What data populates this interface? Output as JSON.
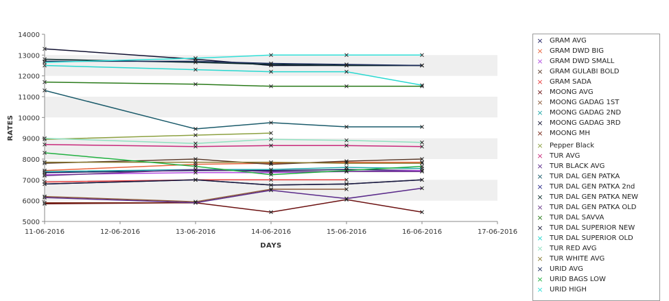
{
  "chart_data": {
    "type": "line",
    "xlabel": "DAYS",
    "ylabel": "RATES",
    "ylim": [
      5000,
      14000
    ],
    "yticks": [
      5000,
      6000,
      7000,
      8000,
      9000,
      10000,
      11000,
      12000,
      13000,
      14000
    ],
    "x_ticks": [
      "11-06-2016",
      "12-06-2016",
      "13-06-2016",
      "14-06-2016",
      "15-06-2016",
      "16-06-2016",
      "17-06-2016"
    ],
    "grid": "horizontal alternating bands",
    "legend_position": "right",
    "marker": "x",
    "series": [
      {
        "name": "GRAM AVG",
        "color": "#1a1a5e",
        "points": [
          [
            "11-06-2016",
            7350
          ],
          [
            "13-06-2016",
            7450
          ],
          [
            "14-06-2016",
            7450
          ],
          [
            "15-06-2016",
            7500
          ],
          [
            "16-06-2016",
            7450
          ]
        ]
      },
      {
        "name": "GRAM DWD BIG",
        "color": "#e8643c",
        "points": [
          [
            "11-06-2016",
            7450
          ],
          [
            "13-06-2016",
            7750
          ],
          [
            "14-06-2016",
            7800
          ],
          [
            "15-06-2016",
            7850
          ],
          [
            "16-06-2016",
            7850
          ]
        ]
      },
      {
        "name": "GRAM DWD SMALL",
        "color": "#b34de0",
        "points": [
          [
            "11-06-2016",
            7250
          ],
          [
            "13-06-2016",
            7350
          ],
          [
            "14-06-2016",
            7350
          ],
          [
            "15-06-2016",
            7400
          ],
          [
            "16-06-2016",
            7450
          ]
        ]
      },
      {
        "name": "GRAM GULABI BOLD",
        "color": "#5a3a2a",
        "points": [
          [
            "11-06-2016",
            7800
          ],
          [
            "13-06-2016",
            8000
          ],
          [
            "14-06-2016",
            7750
          ],
          [
            "15-06-2016",
            7900
          ],
          [
            "16-06-2016",
            8000
          ]
        ]
      },
      {
        "name": "GRAM SADA",
        "color": "#e83c3c",
        "points": [
          [
            "11-06-2016",
            6900
          ],
          [
            "13-06-2016",
            7000
          ],
          [
            "14-06-2016",
            7000
          ],
          [
            "15-06-2016",
            7000
          ]
        ]
      },
      {
        "name": "MOONG AVG",
        "color": "#6b1010",
        "points": [
          [
            "11-06-2016",
            5850
          ],
          [
            "13-06-2016",
            5900
          ],
          [
            "14-06-2016",
            5450
          ],
          [
            "15-06-2016",
            6050
          ],
          [
            "16-06-2016",
            5450
          ]
        ]
      },
      {
        "name": "MOONG GADAG 1ST",
        "color": "#8c5a3a",
        "points": [
          [
            "11-06-2016",
            6200
          ],
          [
            "13-06-2016",
            5950
          ],
          [
            "14-06-2016",
            6550
          ],
          [
            "15-06-2016",
            6550
          ]
        ]
      },
      {
        "name": "MOONG GADAG 2ND",
        "color": "#20a8a8",
        "points": [
          [
            "11-06-2016",
            7400
          ],
          [
            "13-06-2016",
            7500
          ],
          [
            "14-06-2016",
            7500
          ],
          [
            "15-06-2016",
            7600
          ],
          [
            "16-06-2016",
            7550
          ]
        ]
      },
      {
        "name": "MOONG GADAG 3RD",
        "color": "#101030",
        "points": [
          [
            "11-06-2016",
            13300
          ],
          [
            "13-06-2016",
            12800
          ],
          [
            "14-06-2016",
            12500
          ],
          [
            "15-06-2016",
            12500
          ],
          [
            "16-06-2016",
            12500
          ]
        ]
      },
      {
        "name": "MOONG MH",
        "color": "#7a2a1a",
        "points": [
          [
            "11-06-2016",
            5900
          ],
          [
            "13-06-2016",
            5900
          ]
        ]
      },
      {
        "name": "Pepper Black",
        "color": "#8ca040",
        "points": [
          [
            "11-06-2016",
            8950
          ],
          [
            "13-06-2016",
            9150
          ],
          [
            "14-06-2016",
            9250
          ]
        ]
      },
      {
        "name": "TUR AVG",
        "color": "#c8287a",
        "points": [
          [
            "11-06-2016",
            8700
          ],
          [
            "13-06-2016",
            8600
          ],
          [
            "14-06-2016",
            8650
          ],
          [
            "15-06-2016",
            8650
          ],
          [
            "16-06-2016",
            8600
          ]
        ]
      },
      {
        "name": "TUR BLACK AVG",
        "color": "#5a2a8a",
        "points": [
          [
            "11-06-2016",
            6150
          ],
          [
            "13-06-2016",
            5900
          ],
          [
            "14-06-2016",
            6500
          ],
          [
            "15-06-2016",
            6100
          ],
          [
            "16-06-2016",
            6600
          ]
        ]
      },
      {
        "name": "TUR DAL GEN PATKA",
        "color": "#1a5a6a",
        "points": [
          [
            "11-06-2016",
            11300
          ],
          [
            "13-06-2016",
            9450
          ],
          [
            "14-06-2016",
            9750
          ],
          [
            "15-06-2016",
            9550
          ],
          [
            "16-06-2016",
            9550
          ]
        ]
      },
      {
        "name": "TUR DAL GEN PATKA 2nd",
        "color": "#2a2a8a",
        "points": [
          [
            "11-06-2016",
            6800
          ],
          [
            "13-06-2016",
            7000
          ],
          [
            "14-06-2016",
            6750
          ],
          [
            "15-06-2016",
            6800
          ],
          [
            "16-06-2016",
            7000
          ]
        ]
      },
      {
        "name": "TUR DAL GEN PATKA NEW",
        "color": "#0a2a2a",
        "points": [
          [
            "11-06-2016",
            12800
          ],
          [
            "13-06-2016",
            12650
          ],
          [
            "14-06-2016",
            12550
          ],
          [
            "15-06-2016",
            12500
          ],
          [
            "16-06-2016",
            12500
          ]
        ]
      },
      {
        "name": "TUR DAL GEN PATKA OLD",
        "color": "#6a3a8a",
        "points": [
          [
            "11-06-2016",
            7200
          ],
          [
            "13-06-2016",
            7500
          ],
          [
            "14-06-2016",
            7400
          ],
          [
            "15-06-2016",
            7400
          ],
          [
            "16-06-2016",
            7400
          ]
        ]
      },
      {
        "name": "TUR DAL SAVVA",
        "color": "#2a7a1a",
        "points": [
          [
            "11-06-2016",
            11700
          ],
          [
            "13-06-2016",
            11600
          ],
          [
            "14-06-2016",
            11500
          ],
          [
            "15-06-2016",
            11500
          ],
          [
            "16-06-2016",
            11500
          ]
        ]
      },
      {
        "name": "TUR DAL SUPERIOR NEW",
        "color": "#1a1a3a",
        "points": [
          [
            "11-06-2016",
            6800
          ],
          [
            "13-06-2016",
            7000
          ],
          [
            "14-06-2016",
            6750
          ],
          [
            "15-06-2016",
            6800
          ],
          [
            "16-06-2016",
            7000
          ]
        ]
      },
      {
        "name": "TUR DAL SUPERIOR OLD",
        "color": "#28d8d0",
        "points": [
          [
            "11-06-2016",
            12500
          ],
          [
            "13-06-2016",
            12300
          ],
          [
            "14-06-2016",
            12200
          ],
          [
            "15-06-2016",
            12200
          ],
          [
            "16-06-2016",
            11550
          ]
        ]
      },
      {
        "name": "TUR RED AVG",
        "color": "#90e0c0",
        "points": [
          [
            "11-06-2016",
            9000
          ],
          [
            "13-06-2016",
            8750
          ],
          [
            "14-06-2016",
            8950
          ],
          [
            "15-06-2016",
            8900
          ],
          [
            "16-06-2016",
            8800
          ]
        ]
      },
      {
        "name": "TUR WHITE AVG",
        "color": "#8a7a30",
        "points": [
          [
            "11-06-2016",
            7850
          ],
          [
            "13-06-2016",
            7850
          ],
          [
            "14-06-2016",
            7850
          ],
          [
            "15-06-2016",
            7800
          ],
          [
            "16-06-2016",
            7800
          ]
        ]
      },
      {
        "name": "URID AVG",
        "color": "#1a2a5a",
        "points": [
          [
            "11-06-2016",
            12700
          ],
          [
            "13-06-2016",
            12700
          ],
          [
            "14-06-2016",
            12600
          ],
          [
            "15-06-2016",
            12550
          ],
          [
            "16-06-2016",
            12500
          ]
        ]
      },
      {
        "name": "URID BAGS LOW",
        "color": "#20b040",
        "points": [
          [
            "11-06-2016",
            8300
          ],
          [
            "13-06-2016",
            7650
          ],
          [
            "14-06-2016",
            7250
          ],
          [
            "15-06-2016",
            7450
          ],
          [
            "16-06-2016",
            7650
          ]
        ]
      },
      {
        "name": "URID HIGH",
        "color": "#30e0d8",
        "points": [
          [
            "11-06-2016",
            12650
          ],
          [
            "13-06-2016",
            12850
          ],
          [
            "14-06-2016",
            13000
          ],
          [
            "15-06-2016",
            13000
          ],
          [
            "16-06-2016",
            13000
          ]
        ]
      }
    ]
  }
}
